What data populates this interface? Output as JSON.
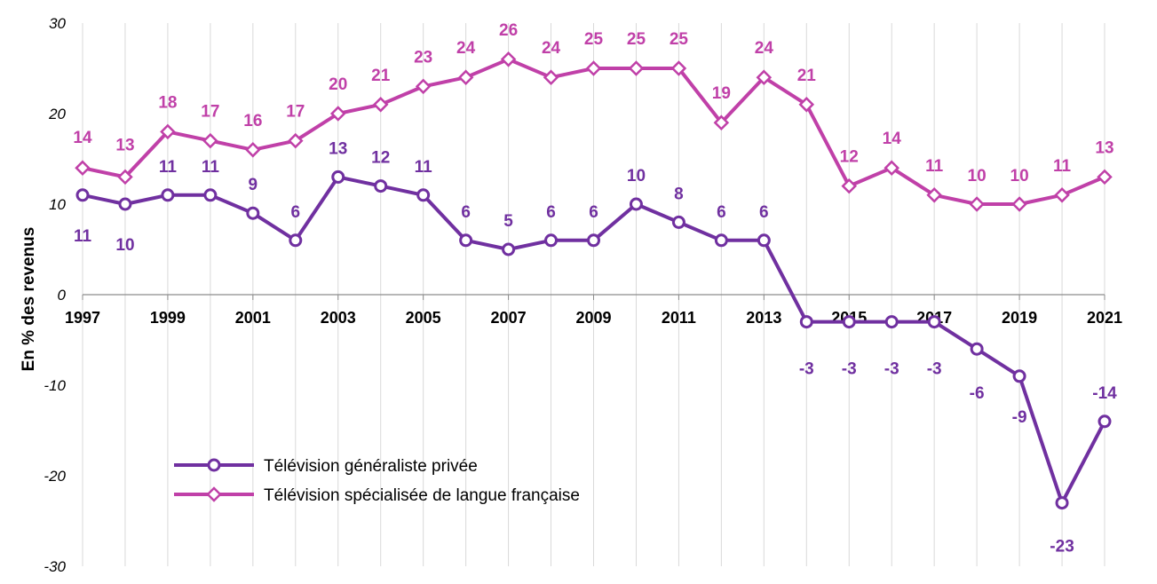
{
  "chart_data": {
    "type": "line",
    "xlabel": "",
    "ylabel": "En % des revenus",
    "ylim": [
      -30,
      30
    ],
    "yticks": [
      30,
      20,
      10,
      0,
      -10,
      -20,
      -30
    ],
    "x": [
      1997,
      1998,
      1999,
      2000,
      2001,
      2002,
      2003,
      2004,
      2005,
      2006,
      2007,
      2008,
      2009,
      2010,
      2011,
      2012,
      2013,
      2014,
      2015,
      2016,
      2017,
      2018,
      2019,
      2020,
      2021
    ],
    "xtick_labels": [
      "1997",
      "1999",
      "2001",
      "2003",
      "2005",
      "2007",
      "2009",
      "2011",
      "2013",
      "2015",
      "2017",
      "2019",
      "2021"
    ],
    "grid": "vertical",
    "legend_position": "bottom-left",
    "series": [
      {
        "name": "Télévision généraliste privée",
        "color": "#7030a0",
        "marker": "circle",
        "values": [
          11,
          10,
          11,
          11,
          9,
          6,
          13,
          12,
          11,
          6,
          5,
          6,
          6,
          10,
          8,
          6,
          6,
          -3,
          -3,
          -3,
          -3,
          -6,
          -9,
          -23,
          -14
        ]
      },
      {
        "name": "Télévision spécialisée de langue française",
        "color": "#c040a8",
        "marker": "diamond",
        "values": [
          14,
          13,
          18,
          17,
          16,
          17,
          20,
          21,
          23,
          24,
          26,
          24,
          25,
          25,
          25,
          19,
          24,
          21,
          12,
          14,
          11,
          10,
          10,
          11,
          13
        ]
      }
    ]
  }
}
